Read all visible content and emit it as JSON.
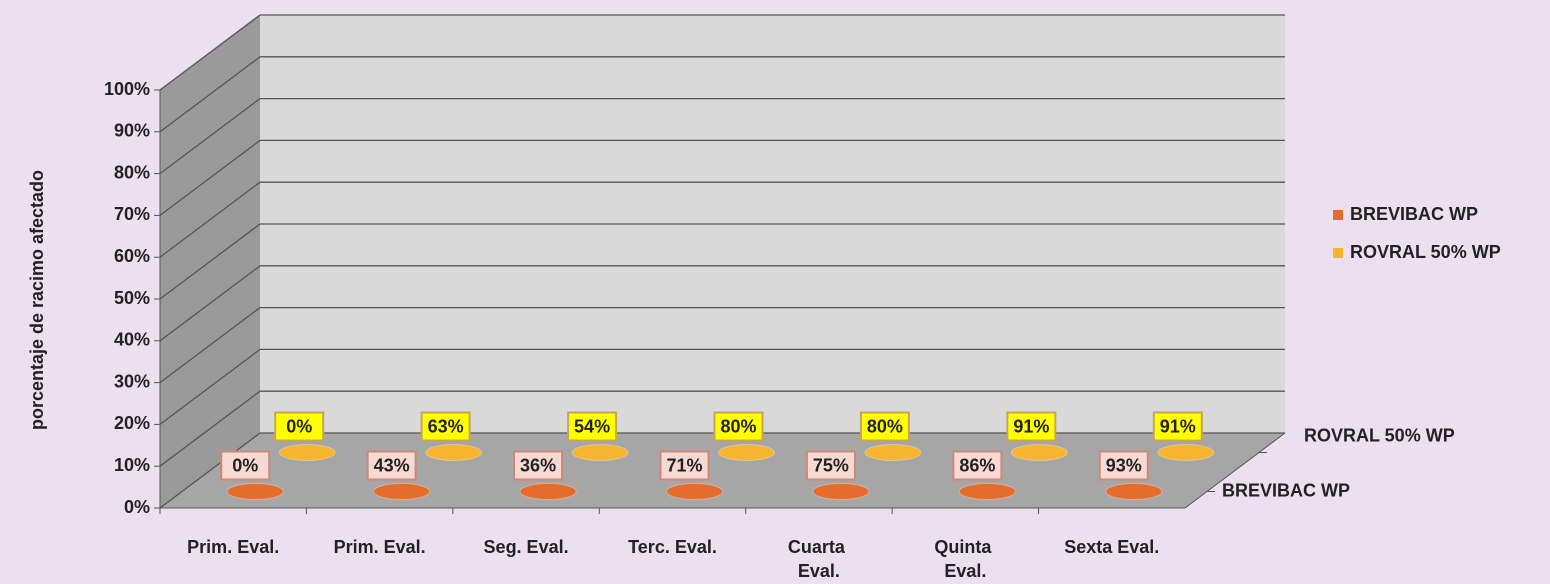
{
  "chart_data": {
    "type": "bar3d",
    "y_label": "porcentaje de racimo afectado",
    "categories": [
      "Prim. Eval.",
      "Prim. Eval.",
      "Seg. Eval.",
      "Terc. Eval.",
      "Cuarta Eval.",
      "Quinta Eval.",
      "Sexta Eval."
    ],
    "series": [
      {
        "name": "BREVIBAC WP",
        "color": "#e46c2c",
        "values": [
          0,
          43,
          36,
          71,
          75,
          86,
          93
        ],
        "value_labels": [
          "0%",
          "43%",
          "36%",
          "71%",
          "75%",
          "86%",
          "93%"
        ]
      },
      {
        "name": "ROVRAL 50% WP",
        "color": "#f6b42f",
        "values": [
          0,
          63,
          54,
          80,
          80,
          91,
          91
        ],
        "value_labels": [
          "0%",
          "63%",
          "54%",
          "80%",
          "80%",
          "91%",
          "91%"
        ]
      }
    ],
    "ylim": [
      0,
      100
    ],
    "yticks": [
      {
        "value": 0,
        "label": "0%"
      },
      {
        "value": 10,
        "label": "10%"
      },
      {
        "value": 20,
        "label": "20%"
      },
      {
        "value": 30,
        "label": "30%"
      },
      {
        "value": 40,
        "label": "40%"
      },
      {
        "value": 50,
        "label": "50%"
      },
      {
        "value": 60,
        "label": "60%"
      },
      {
        "value": 70,
        "label": "70%"
      },
      {
        "value": 80,
        "label": "80%"
      },
      {
        "value": 90,
        "label": "90%"
      },
      {
        "value": 100,
        "label": "100%"
      }
    ],
    "grid": true,
    "legend": "right"
  }
}
